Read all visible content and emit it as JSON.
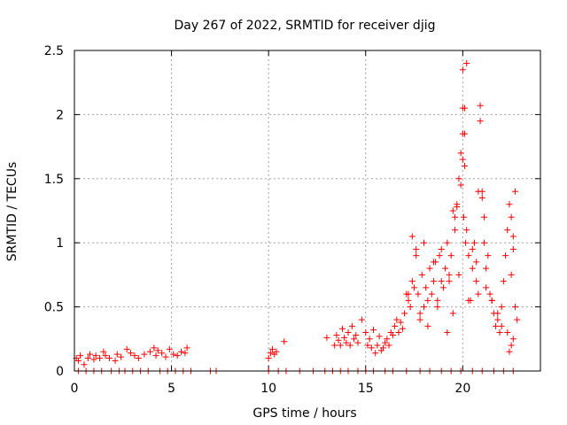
{
  "chart_data": {
    "type": "scatter",
    "title": "Day 267 of 2022, SRMTID for receiver djig",
    "xlabel": "GPS time / hours",
    "ylabel": "SRMTID / TECUs",
    "xlim": [
      0,
      24
    ],
    "ylim": [
      0,
      2.5
    ],
    "x_ticks": [
      0,
      5,
      10,
      15,
      20
    ],
    "x_tick_labels": [
      "0",
      "5",
      "10",
      "15",
      "20"
    ],
    "y_ticks": [
      0,
      0.5,
      1,
      1.5,
      2,
      2.5
    ],
    "y_tick_labels": [
      "0",
      "0.5",
      "1",
      "1.5",
      "2",
      "2.5"
    ],
    "grid": true,
    "marker": "+",
    "colors": {
      "marker": "#ff0000",
      "grid": "#a0a0a0",
      "axes": "#000000"
    },
    "series": [
      {
        "name": "SRMTID",
        "x": [
          0.1,
          0.2,
          0.3,
          0.5,
          0.7,
          0.8,
          1.0,
          1.1,
          1.3,
          1.5,
          1.6,
          1.8,
          2.1,
          2.2,
          2.4,
          2.7,
          2.9,
          3.1,
          3.3,
          3.6,
          3.9,
          4.1,
          4.2,
          4.3,
          4.5,
          4.7,
          4.9,
          5.1,
          5.3,
          5.5,
          5.7,
          5.8,
          10.0,
          10.1,
          10.2,
          10.3,
          10.4,
          10.8,
          13.0,
          13.4,
          13.5,
          13.6,
          13.7,
          13.8,
          13.9,
          14.0,
          14.1,
          14.2,
          14.3,
          14.4,
          14.5,
          14.6,
          14.8,
          15.0,
          15.1,
          15.2,
          15.3,
          15.4,
          15.5,
          15.6,
          15.7,
          15.8,
          15.9,
          16.0,
          16.1,
          16.2,
          16.3,
          16.4,
          16.5,
          16.6,
          16.7,
          16.8,
          16.9,
          17.0,
          17.1,
          17.2,
          17.3,
          17.4,
          17.5,
          17.6,
          17.7,
          17.8,
          17.9,
          18.0,
          18.1,
          18.2,
          18.3,
          18.4,
          18.5,
          18.6,
          18.7,
          18.8,
          18.9,
          19.0,
          19.1,
          19.2,
          19.3,
          19.4,
          19.5,
          19.6,
          19.7,
          19.8,
          19.9,
          20.0,
          20.05,
          20.1,
          20.15,
          20.2,
          20.3,
          20.4,
          20.5,
          20.6,
          20.7,
          20.8,
          20.9,
          21.0,
          21.1,
          21.2,
          21.3,
          21.4,
          21.5,
          21.6,
          21.7,
          21.8,
          21.9,
          22.0,
          22.1,
          22.2,
          22.3,
          22.4,
          22.5,
          22.6,
          22.7,
          22.8,
          0.2,
          0.6,
          1.0,
          1.4,
          1.9,
          2.3,
          2.6,
          3.0,
          3.4,
          3.8,
          4.4,
          4.8,
          5.2,
          5.6,
          6.0,
          7.0,
          7.3,
          10.0,
          10.5,
          10.9,
          11.6,
          12.3,
          12.9,
          13.3,
          13.7,
          14.1,
          14.6,
          15.0,
          15.4,
          16.0,
          16.4,
          17.1,
          17.8,
          18.3,
          18.9,
          19.4,
          19.9,
          20.5,
          21.0,
          21.6,
          22.1,
          22.6,
          17.4,
          17.6,
          18.0,
          18.5,
          18.9,
          19.3,
          19.6,
          19.7,
          19.8,
          19.9,
          20.0,
          20.0,
          20.0,
          20.1,
          20.1,
          20.2,
          20.3,
          20.5,
          20.7,
          20.8,
          20.9,
          21.0,
          21.1,
          21.2,
          21.5,
          21.8,
          22.0,
          22.3,
          22.5,
          22.6,
          22.7,
          22.6,
          22.5,
          22.4,
          19.5,
          19.2,
          18.7,
          18.2,
          17.8,
          17.2
        ],
        "y": [
          0.1,
          0.08,
          0.12,
          0.05,
          0.1,
          0.13,
          0.09,
          0.12,
          0.1,
          0.15,
          0.12,
          0.1,
          0.08,
          0.13,
          0.11,
          0.17,
          0.14,
          0.12,
          0.1,
          0.13,
          0.15,
          0.18,
          0.12,
          0.16,
          0.14,
          0.11,
          0.17,
          0.13,
          0.12,
          0.15,
          0.14,
          0.18,
          0.1,
          0.14,
          0.17,
          0.13,
          0.15,
          0.23,
          0.26,
          0.2,
          0.28,
          0.24,
          0.2,
          0.33,
          0.26,
          0.22,
          0.3,
          0.2,
          0.35,
          0.25,
          0.28,
          0.22,
          0.4,
          0.3,
          0.2,
          0.25,
          0.18,
          0.32,
          0.14,
          0.2,
          0.27,
          0.16,
          0.18,
          0.22,
          0.25,
          0.2,
          0.3,
          0.28,
          0.35,
          0.4,
          0.3,
          0.38,
          0.33,
          0.45,
          0.6,
          0.55,
          0.5,
          0.7,
          0.65,
          0.95,
          0.6,
          0.45,
          0.75,
          0.5,
          0.65,
          0.55,
          0.8,
          0.6,
          0.7,
          0.85,
          0.55,
          0.9,
          0.7,
          0.65,
          0.8,
          1.0,
          0.75,
          0.9,
          1.25,
          1.1,
          1.3,
          1.5,
          1.7,
          2.05,
          1.2,
          1.85,
          1.0,
          2.4,
          0.9,
          0.55,
          0.8,
          1.0,
          0.7,
          0.6,
          1.95,
          1.4,
          1.2,
          0.8,
          0.9,
          0.6,
          0.55,
          0.45,
          0.35,
          0.4,
          0.3,
          0.5,
          0.7,
          0.9,
          1.1,
          1.3,
          1.2,
          0.95,
          0.5,
          0.4,
          0.0,
          0.0,
          0.0,
          0.0,
          0.0,
          0.0,
          0.0,
          0.0,
          0.0,
          0.0,
          0.0,
          0.0,
          0.0,
          0.0,
          0.0,
          0.0,
          0.0,
          0.0,
          0.0,
          0.0,
          0.0,
          0.0,
          0.0,
          0.0,
          0.0,
          0.0,
          0.0,
          0.0,
          0.0,
          0.0,
          0.0,
          0.0,
          0.0,
          0.0,
          0.0,
          0.0,
          0.0,
          0.0,
          0.0,
          0.0,
          0.0,
          0.0,
          1.05,
          0.9,
          1.0,
          0.85,
          0.95,
          0.7,
          1.2,
          1.28,
          0.75,
          1.45,
          1.65,
          1.85,
          2.35,
          2.05,
          1.6,
          1.1,
          0.55,
          0.95,
          0.85,
          1.4,
          2.07,
          1.35,
          1.0,
          0.65,
          0.55,
          0.45,
          0.35,
          0.3,
          0.75,
          1.05,
          1.4,
          0.25,
          0.2,
          0.15,
          0.45,
          0.3,
          0.5,
          0.35,
          0.4,
          0.6
        ]
      }
    ]
  }
}
